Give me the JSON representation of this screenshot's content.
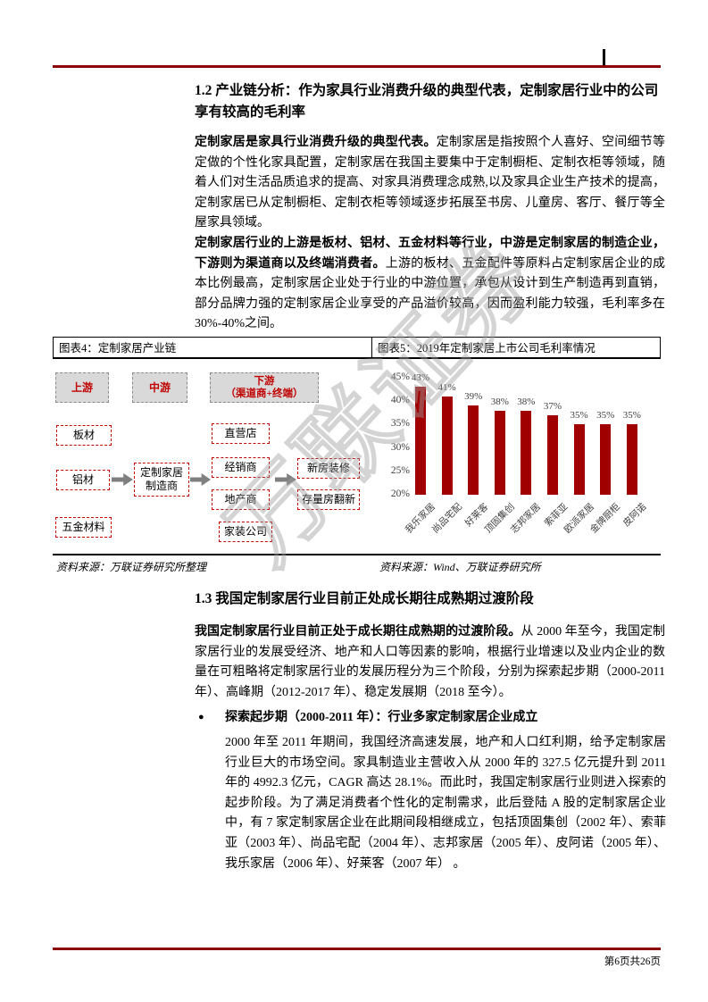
{
  "page": {
    "footer_page_label": "第6页共26页",
    "watermark_text": "万联证券",
    "accent_color": "#8B0000",
    "bar_color": "#A00000"
  },
  "section_1_2": {
    "heading": "1.2 产业链分析：作为家具行业消费升级的典型代表，定制家居行业中的公司享有较高的毛利率",
    "para1_lead": "定制家居是家具行业消费升级的典型代表。",
    "para1_text": "定制家居是指按照个人喜好、空间细节等定做的个性化家具配置，定制家居在我国主要集中于定制橱柜、定制衣柜等领域，随着人们对生活品质追求的提高、对家具消费理念成熟,以及家具企业生产技术的提高，定制家居已从定制橱柜、定制衣柜等领域逐步拓展至书房、儿童房、客厅、餐厅等全屋家具领域。",
    "para2_lead": "定制家居行业的上游是板材、铝材、五金材料等行业，中游是定制家居的制造企业，下游则为渠道商以及终端消费者。",
    "para2_text": "上游的板材、五金配件等原料占定制家居企业的成本比例最高，定制家居企业处于行业的中游位置，承包从设计到生产制造再到直销，部分品牌力强的定制家居企业享受的产品溢价较高，因而盈利能力较强，毛利率多在30%-40%之间。"
  },
  "figure4": {
    "caption": "图表4：定制家居产业链",
    "source": "资料来源：万联证券研究所整理",
    "diagram": {
      "upstream_header": "上游",
      "midstream_header": "中游",
      "downstream_header_line1": "下游",
      "downstream_header_line2": "（渠道商+终端）",
      "materials": [
        "板材",
        "铝材",
        "五金材料"
      ],
      "manufacturer_line1": "定制家居",
      "manufacturer_line2": "制造商",
      "channels": [
        "直营店",
        "经销商",
        "地产商",
        "家装公司"
      ],
      "terminals": [
        "新房装修",
        "存量房翻新"
      ]
    }
  },
  "figure5": {
    "caption": "图表5：2019年定制家居上市公司毛利率情况",
    "source": "资料来源：Wind、万联证券研究所"
  },
  "chart_data": {
    "type": "bar",
    "title": "2019年定制家居上市公司毛利率情况",
    "categories": [
      "我乐家居",
      "尚品宅配",
      "好莱客",
      "顶固集创",
      "志邦家居",
      "索菲亚",
      "欧派家居",
      "金牌厨柜",
      "皮阿诺"
    ],
    "values": [
      43,
      41,
      39,
      38,
      38,
      37,
      35,
      35,
      35
    ],
    "value_labels": [
      "43%",
      "41%",
      "39%",
      "38%",
      "38%",
      "37%",
      "35%",
      "35%",
      "35%"
    ],
    "ylabel": "",
    "xlabel": "",
    "ylim": [
      20,
      45
    ],
    "yticks": [
      45,
      40,
      35,
      30,
      25,
      20
    ],
    "ytick_labels": [
      "45%",
      "40%",
      "35%",
      "30%",
      "25%",
      "20%"
    ],
    "grid": false,
    "legend": false,
    "bar_color": "#A00000"
  },
  "section_1_3": {
    "heading": "1.3 我国定制家居行业目前正处成长期往成熟期过渡阶段",
    "para1_lead": "我国定制家居行业目前正处于成长期往成熟期的过渡阶段。",
    "para1_text": "从 2000 年至今，我国定制家居行业的发展受经济、地产和人口等因素的影响，根据行业增速以及业内企业的数量在可粗略将定制家居行业的发展历程分为三个阶段，分别为探索起步期（2000-2011 年）、高峰期（2012-2017 年）、稳定发展期（2018 至今）。",
    "bullet_marker": "●",
    "bullet_heading": "探索起步期（2000-2011 年）：行业多家定制家居企业成立",
    "bullet_para": "2000 年至 2011 年期间，我国经济高速发展，地产和人口红利期，给予定制家居行业巨大的市场空间。家具制造业主营收入从 2000 年的 327.5 亿元提升到 2011 年的 4992.3 亿元，CAGR 高达 28.1%。而此时，我国定制家居行业则进入探索的起步阶段。为了满足消费者个性化的定制需求，此后登陆 A 股的定制家居企业中，有 7 家定制家居企业在此期间段相继成立，包括顶固集创（2002 年）、索菲亚（2003 年）、尚品宅配（2004 年）、志邦家居（2005 年）、皮阿诺（2005 年）、我乐家居（2006 年）、好莱客（2007 年） 。"
  }
}
